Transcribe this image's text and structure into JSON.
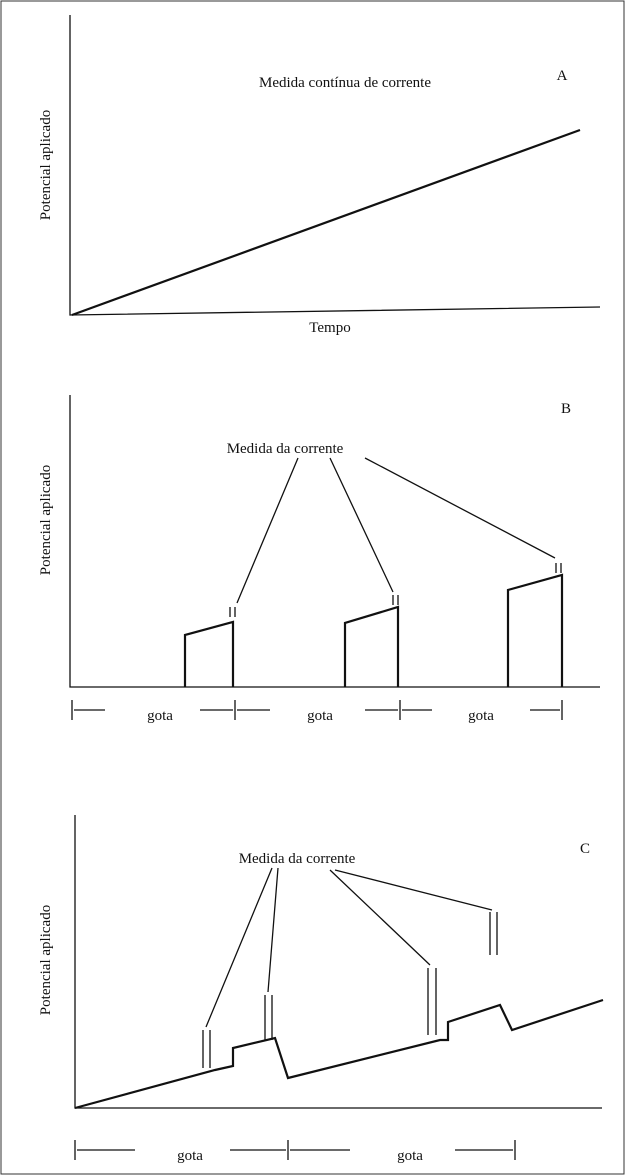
{
  "panels": [
    {
      "label": "A",
      "title": "Medida contínua de corrente",
      "y_label": "Potencial aplicado",
      "x_label": "Tempo"
    },
    {
      "label": "B",
      "annotation": "Medida da corrente",
      "y_label": "Potencial aplicado",
      "intervals": [
        "gota",
        "gota",
        "gota"
      ]
    },
    {
      "label": "C",
      "annotation": "Medida da corrente",
      "y_label": "Potencial aplicado",
      "intervals": [
        "gota",
        "gota"
      ]
    }
  ]
}
